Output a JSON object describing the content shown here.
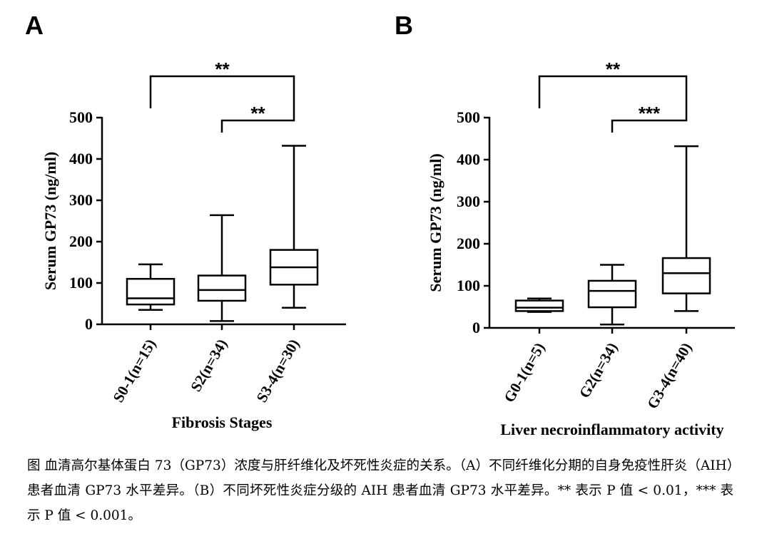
{
  "chart_data": [
    {
      "type": "box",
      "panel": "A",
      "ylabel": "Serum GP73 (ng/ml)",
      "xlabel": "Fibrosis Stages",
      "ylim": [
        0,
        500
      ],
      "yticks": [
        0,
        100,
        200,
        300,
        400,
        500
      ],
      "categories": [
        "S0-1(n=15)",
        "S2(n=34)",
        "S3-4(n=30)"
      ],
      "boxes": [
        {
          "min": 35,
          "q1": 48,
          "median": 63,
          "q3": 110,
          "max": 145
        },
        {
          "min": 8,
          "q1": 57,
          "median": 83,
          "q3": 118,
          "max": 264
        },
        {
          "min": 40,
          "q1": 96,
          "median": 138,
          "q3": 180,
          "max": 432
        }
      ],
      "significance": [
        {
          "from": 0,
          "to": 2,
          "label": "**"
        },
        {
          "from": 1,
          "to": 2,
          "label": "**"
        }
      ]
    },
    {
      "type": "box",
      "panel": "B",
      "ylabel": "Serum GP73 (ng/ml)",
      "xlabel": "Liver necroinflammatory activity",
      "ylim": [
        0,
        500
      ],
      "yticks": [
        0,
        100,
        200,
        300,
        400,
        500
      ],
      "categories": [
        "G0-1(n=5)",
        "G2(n=34)",
        "G3-4(n=40)"
      ],
      "boxes": [
        {
          "min": 38,
          "q1": 40,
          "median": 48,
          "q3": 65,
          "max": 70
        },
        {
          "min": 8,
          "q1": 49,
          "median": 88,
          "q3": 112,
          "max": 150
        },
        {
          "min": 40,
          "q1": 82,
          "median": 130,
          "q3": 166,
          "max": 432
        }
      ],
      "significance": [
        {
          "from": 0,
          "to": 2,
          "label": "**"
        },
        {
          "from": 1,
          "to": 2,
          "label": "***"
        }
      ]
    }
  ],
  "caption": "图 血清高尔基体蛋白 73（GP73）浓度与肝纤维化及坏死性炎症的关系。（A）不同纤维化分期的自身免疫性肝炎（AIH）患者血清 GP73 水平差异。（B）不同坏死性炎症分级的 AIH 患者血清 GP73 水平差异。** 表示 P 值 < 0.01，*** 表示 P 值 < 0.001。"
}
